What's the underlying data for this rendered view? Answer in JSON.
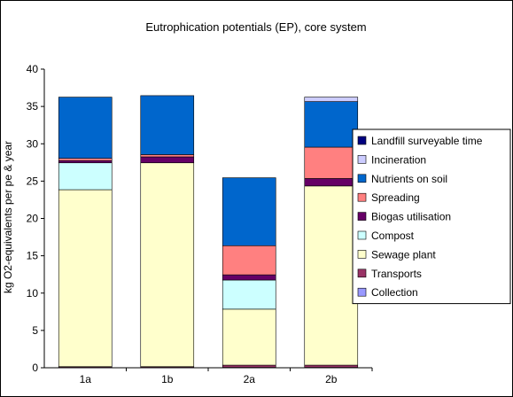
{
  "chart_data": {
    "type": "bar",
    "stacked": true,
    "title": "Eutrophication potentials (EP), core system",
    "xlabel": "",
    "ylabel": "kg O2-equivalents per pe & year",
    "ylim": [
      0,
      40
    ],
    "yticks": [
      0,
      5,
      10,
      15,
      20,
      25,
      30,
      35,
      40
    ],
    "categories": [
      "1a",
      "1b",
      "2a",
      "2b"
    ],
    "grid": false,
    "legend_position": "right",
    "series": [
      {
        "name": "Collection",
        "color": "#9999ff",
        "values": [
          0.05,
          0.05,
          0.05,
          0.05
        ]
      },
      {
        "name": "Transports",
        "color": "#993366",
        "values": [
          0.1,
          0.1,
          0.3,
          0.3
        ]
      },
      {
        "name": "Sewage plant",
        "color": "#ffffcc",
        "values": [
          23.7,
          27.3,
          7.5,
          24.0
        ]
      },
      {
        "name": "Compost",
        "color": "#ccffff",
        "values": [
          3.6,
          0,
          3.9,
          0
        ]
      },
      {
        "name": "Biogas utilisation",
        "color": "#660066",
        "values": [
          0.3,
          0.8,
          0.7,
          1.0
        ]
      },
      {
        "name": "Spreading",
        "color": "#ff8080",
        "values": [
          0.3,
          0.3,
          3.9,
          4.2
        ]
      },
      {
        "name": "Nutrients on soil",
        "color": "#0066cc",
        "values": [
          8.2,
          7.9,
          9.1,
          6.1
        ]
      },
      {
        "name": "Incineration",
        "color": "#ccccff",
        "values": [
          0,
          0,
          0,
          0.6
        ]
      },
      {
        "name": "Landfill surveyable time",
        "color": "#000080",
        "values": [
          0,
          0,
          0,
          0
        ]
      }
    ]
  }
}
